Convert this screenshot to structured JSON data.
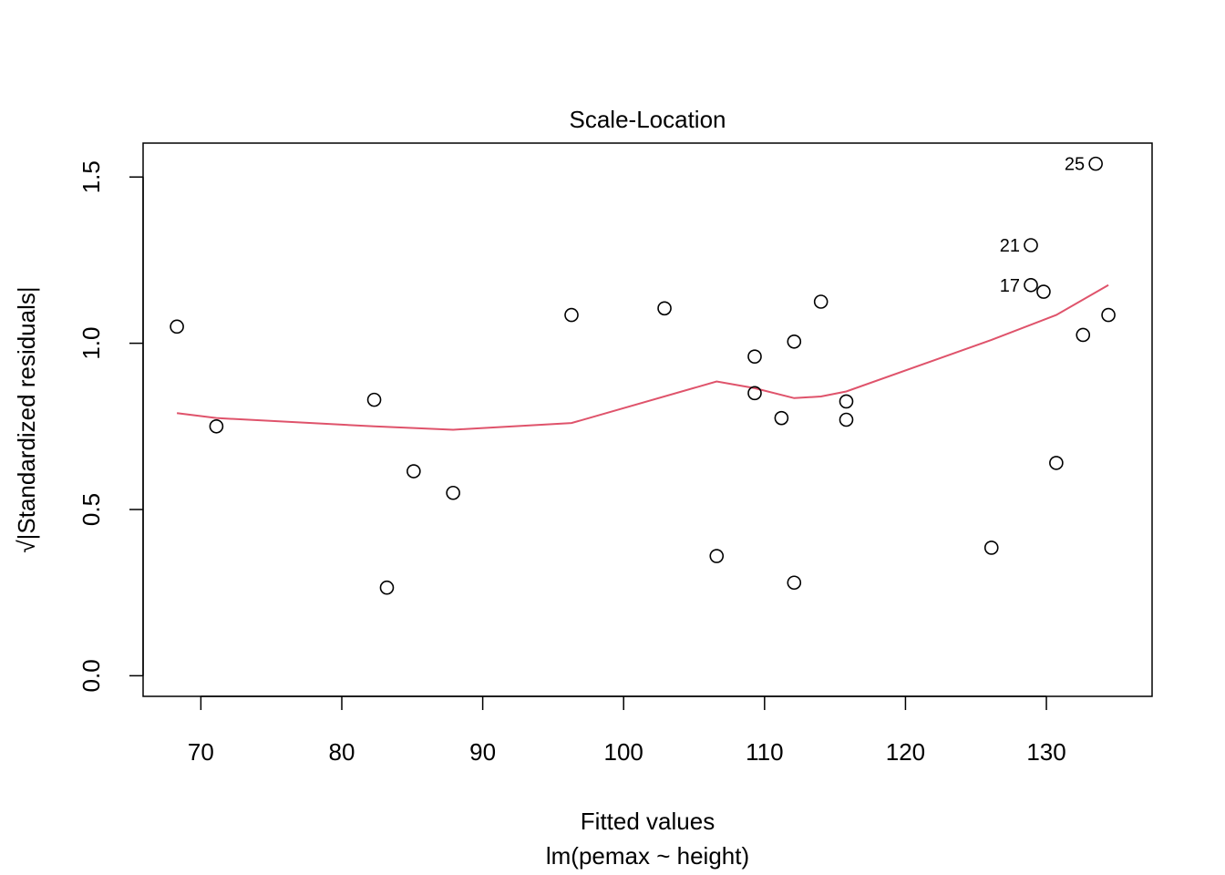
{
  "chart_data": {
    "type": "scatter",
    "title": "Scale-Location",
    "xlabel": "Fitted values",
    "subtitle": "lm(pemax ~ height)",
    "ylabel": "√|Standardized residuals|",
    "xlim": [
      65.9,
      137.5
    ],
    "ylim": [
      -0.062,
      1.602
    ],
    "x_ticks": [
      70,
      80,
      90,
      100,
      110,
      120,
      130
    ],
    "x_tick_labels": [
      "70",
      "80",
      "90",
      "100",
      "110",
      "120",
      "130"
    ],
    "y_ticks": [
      0.0,
      0.5,
      1.0,
      1.5
    ],
    "y_tick_labels": [
      "0.0",
      "0.5",
      "1.0",
      "1.5"
    ],
    "grid": false,
    "points": [
      {
        "x": 68.3,
        "y": 1.05
      },
      {
        "x": 71.1,
        "y": 0.75
      },
      {
        "x": 82.3,
        "y": 0.83
      },
      {
        "x": 83.2,
        "y": 0.265
      },
      {
        "x": 85.1,
        "y": 0.615
      },
      {
        "x": 87.9,
        "y": 0.55
      },
      {
        "x": 96.3,
        "y": 1.085
      },
      {
        "x": 102.9,
        "y": 1.105
      },
      {
        "x": 106.6,
        "y": 0.36
      },
      {
        "x": 109.3,
        "y": 0.96
      },
      {
        "x": 109.3,
        "y": 0.85
      },
      {
        "x": 111.2,
        "y": 0.775
      },
      {
        "x": 112.1,
        "y": 1.005
      },
      {
        "x": 112.1,
        "y": 0.28
      },
      {
        "x": 114.0,
        "y": 1.125
      },
      {
        "x": 115.8,
        "y": 0.825
      },
      {
        "x": 115.8,
        "y": 0.77
      },
      {
        "x": 126.1,
        "y": 0.385
      },
      {
        "x": 128.9,
        "y": 1.295,
        "label": "21"
      },
      {
        "x": 128.9,
        "y": 1.175,
        "label": "17"
      },
      {
        "x": 129.8,
        "y": 1.155
      },
      {
        "x": 130.7,
        "y": 0.64
      },
      {
        "x": 132.6,
        "y": 1.025
      },
      {
        "x": 133.5,
        "y": 1.54,
        "label": "25"
      },
      {
        "x": 134.4,
        "y": 1.085
      }
    ],
    "smoother": {
      "x": [
        68.3,
        71.1,
        82.3,
        87.9,
        96.3,
        106.6,
        109.3,
        112.1,
        114.0,
        115.8,
        126.1,
        130.7,
        134.4
      ],
      "y": [
        0.79,
        0.775,
        0.75,
        0.74,
        0.76,
        0.885,
        0.865,
        0.835,
        0.84,
        0.855,
        1.01,
        1.085,
        1.175
      ]
    },
    "colors": {
      "points": "#000000",
      "smoother": "#DF536B",
      "axes": "#000000"
    }
  }
}
